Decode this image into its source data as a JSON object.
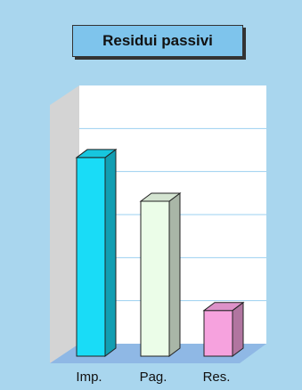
{
  "chart_data": {
    "type": "bar",
    "title": "Residui passivi",
    "categories": [
      "Imp.",
      "Pag.",
      "Res."
    ],
    "values": [
      100,
      78,
      23
    ],
    "ylim": [
      0,
      130
    ],
    "grid": true,
    "colors": [
      "#19dcf7",
      "#ebfde8",
      "#f6a2de"
    ]
  },
  "colors": {
    "background": "#a9d6ee",
    "wall_back": "#ffffff",
    "wall_side": "#d4d4d4",
    "floor": "#8fb8e5",
    "gridline": "#9bd0f0"
  }
}
